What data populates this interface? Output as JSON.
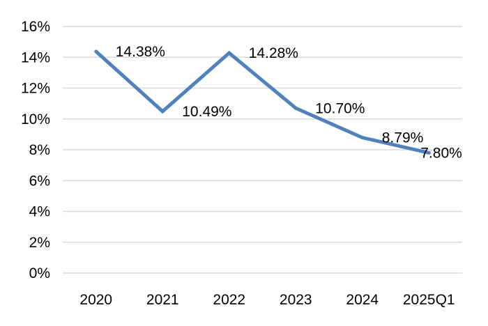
{
  "chart_data": {
    "type": "line",
    "categories": [
      "2020",
      "2021",
      "2022",
      "2023",
      "2024",
      "2025Q1"
    ],
    "series": [
      {
        "values": [
          14.38,
          10.49,
          14.28,
          10.7,
          8.79,
          7.8
        ],
        "data_labels": [
          "14.38%",
          "10.49%",
          "14.28%",
          "10.70%",
          "8.79%",
          "7.80%"
        ]
      }
    ],
    "y_ticks": [
      "0%",
      "2%",
      "4%",
      "6%",
      "8%",
      "10%",
      "12%",
      "14%",
      "16%"
    ],
    "ylim": [
      0,
      16
    ],
    "grid": true,
    "legend": "none",
    "line_color": "#4f81bd"
  }
}
